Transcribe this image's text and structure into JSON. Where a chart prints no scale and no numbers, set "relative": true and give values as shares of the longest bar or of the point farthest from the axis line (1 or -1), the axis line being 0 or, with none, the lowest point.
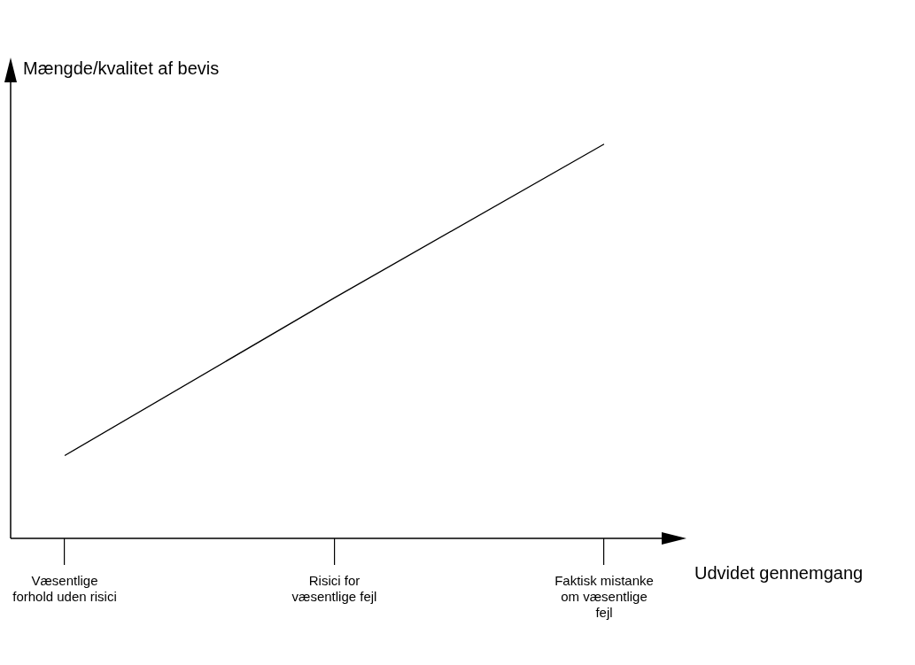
{
  "chart_data": {
    "type": "line",
    "xlabel": "Udvidet gennemgang",
    "ylabel": "Mængde/kvalitet af bevis",
    "categories": [
      "Væsentlige\nforhold uden risici",
      "Risici for\nvæsentlige fejl",
      "Faktisk mistanke\nom væsentlige\nfejl"
    ],
    "values": [
      0.21,
      0.61,
      1
    ],
    "color": "#000000",
    "relative": true
  }
}
